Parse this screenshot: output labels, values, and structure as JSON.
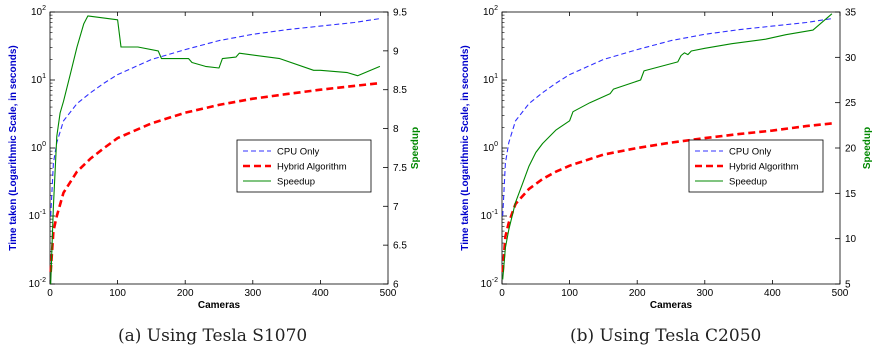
{
  "captions": {
    "a": "(a) Using Tesla S1070",
    "b": "(b) Using Tesla C2050"
  },
  "colors": {
    "cpu": "#3030ff",
    "hybrid": "#ff0000",
    "speedup": "#008800",
    "left_axis_label": "#0000cc",
    "right_axis_label": "#008800"
  },
  "chart_data": [
    {
      "type": "line",
      "xlabel": "Cameras",
      "ylabel": "Time taken (Logarithmic Scale, in seconds)",
      "y2label": "Speedup",
      "xlim": [
        0,
        500
      ],
      "xticks": [
        "0",
        "100",
        "200",
        "300",
        "400",
        "500"
      ],
      "ylim": [
        0.01,
        100
      ],
      "yscale": "log",
      "yticks": [
        {
          "mant": "10",
          "exp": "-2"
        },
        {
          "mant": "10",
          "exp": "-1"
        },
        {
          "mant": "10",
          "exp": "0"
        },
        {
          "mant": "10",
          "exp": "1"
        },
        {
          "mant": "10",
          "exp": "2"
        }
      ],
      "y2lim": [
        6,
        9.5
      ],
      "y2ticks": [
        "6",
        "6.5",
        "7",
        "7.5",
        "8",
        "8.5",
        "9",
        "9.5"
      ],
      "legend_position": "center-right",
      "grid": false,
      "series": [
        {
          "name": "CPU Only",
          "axis": "left",
          "style": "dashed-thin",
          "x": [
            1,
            5,
            10,
            20,
            40,
            60,
            80,
            100,
            150,
            200,
            250,
            300,
            350,
            400,
            450,
            488
          ],
          "y": [
            0.1,
            0.6,
            1.2,
            2.5,
            4.5,
            6.5,
            9,
            12,
            20,
            28,
            38,
            47,
            55,
            62,
            70,
            80
          ]
        },
        {
          "name": "Hybrid Algorithm",
          "axis": "left",
          "style": "dashed-thick",
          "x": [
            1,
            5,
            10,
            20,
            40,
            60,
            80,
            100,
            150,
            200,
            250,
            300,
            350,
            400,
            450,
            488
          ],
          "y": [
            0.015,
            0.06,
            0.1,
            0.22,
            0.45,
            0.7,
            1.0,
            1.4,
            2.3,
            3.3,
            4.3,
            5.3,
            6.2,
            7.2,
            8.2,
            9
          ]
        },
        {
          "name": "Speedup",
          "axis": "right",
          "style": "solid",
          "x": [
            1,
            5,
            10,
            15,
            20,
            30,
            40,
            50,
            56,
            100,
            105,
            130,
            160,
            165,
            205,
            210,
            230,
            250,
            255,
            275,
            280,
            340,
            390,
            400,
            440,
            455,
            488
          ],
          "y": [
            6,
            7,
            7.9,
            8.2,
            8.35,
            8.7,
            9.05,
            9.35,
            9.45,
            9.4,
            9.05,
            9.05,
            9.0,
            8.9,
            8.9,
            8.85,
            8.8,
            8.78,
            8.9,
            8.92,
            8.97,
            8.9,
            8.75,
            8.75,
            8.72,
            8.68,
            8.8
          ]
        }
      ]
    },
    {
      "type": "line",
      "xlabel": "Cameras",
      "ylabel": "Time taken (Logarithmic Scale, in seconds)",
      "y2label": "Speedup",
      "xlim": [
        0,
        500
      ],
      "xticks": [
        "0",
        "100",
        "200",
        "300",
        "400",
        "500"
      ],
      "ylim": [
        0.01,
        100
      ],
      "yscale": "log",
      "yticks": [
        {
          "mant": "10",
          "exp": "-2"
        },
        {
          "mant": "10",
          "exp": "-1"
        },
        {
          "mant": "10",
          "exp": "0"
        },
        {
          "mant": "10",
          "exp": "1"
        },
        {
          "mant": "10",
          "exp": "2"
        }
      ],
      "y2lim": [
        5,
        35
      ],
      "y2ticks": [
        "5",
        "10",
        "15",
        "20",
        "25",
        "30",
        "35"
      ],
      "legend_position": "center-right",
      "grid": false,
      "series": [
        {
          "name": "CPU Only",
          "axis": "left",
          "style": "dashed-thin",
          "x": [
            1,
            5,
            10,
            20,
            40,
            60,
            80,
            100,
            150,
            200,
            250,
            300,
            350,
            400,
            450,
            488
          ],
          "y": [
            0.1,
            0.6,
            1.2,
            2.5,
            4.5,
            6.5,
            9,
            12,
            20,
            28,
            38,
            47,
            55,
            62,
            70,
            80
          ]
        },
        {
          "name": "Hybrid Algorithm",
          "axis": "left",
          "style": "dashed-thick",
          "x": [
            1,
            5,
            10,
            20,
            40,
            60,
            80,
            100,
            150,
            200,
            250,
            300,
            350,
            400,
            450,
            488
          ],
          "y": [
            0.015,
            0.05,
            0.08,
            0.15,
            0.25,
            0.35,
            0.45,
            0.55,
            0.8,
            1.0,
            1.2,
            1.4,
            1.6,
            1.8,
            2.1,
            2.3
          ]
        },
        {
          "name": "Speedup",
          "axis": "right",
          "style": "solid",
          "x": [
            1,
            5,
            10,
            20,
            30,
            40,
            50,
            60,
            80,
            100,
            105,
            130,
            160,
            165,
            205,
            210,
            260,
            265,
            270,
            275,
            280,
            300,
            340,
            390,
            420,
            460,
            488
          ],
          "y": [
            5.5,
            9,
            11,
            14,
            16,
            18,
            19.5,
            20.5,
            22,
            23,
            24,
            25,
            26,
            26.5,
            27.5,
            28.5,
            29.5,
            30.2,
            30.5,
            30.3,
            30.7,
            31,
            31.5,
            32,
            32.5,
            33,
            34.8
          ]
        }
      ]
    }
  ]
}
